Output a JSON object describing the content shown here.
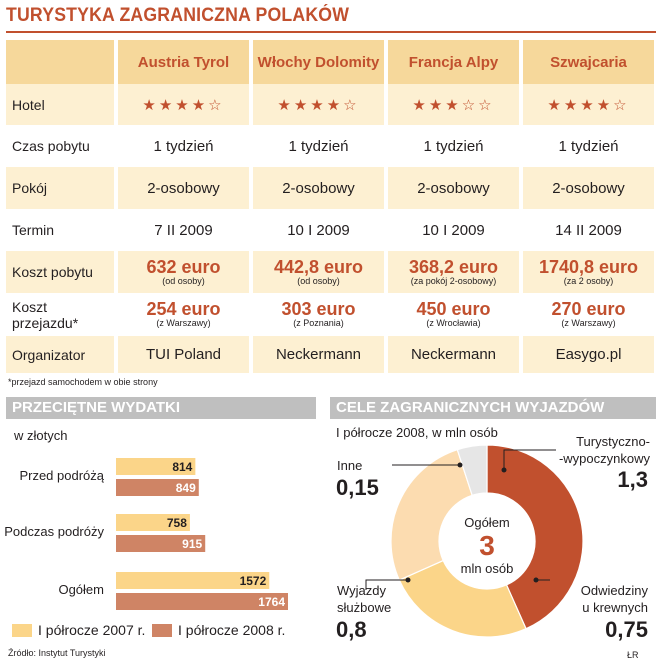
{
  "title": "TURYSTYKA ZAGRANICZNA POLAKÓW",
  "colors": {
    "accent": "#c1502e",
    "header_band": "#f6d89b",
    "row_band": "#fdf0d2",
    "bar_2007": "#fbd589",
    "bar_2008": "#cf8465",
    "donut_turyst": "#c1502e",
    "donut_odw": "#fbd589",
    "donut_wyj": "#fcdcb0",
    "donut_inne": "#e6e6e6",
    "section": "#bfbfbf"
  },
  "table": {
    "destinations": [
      "Austria Tyrol",
      "Włochy Dolomity",
      "Francja Alpy",
      "Szwajcaria"
    ],
    "rows": {
      "hotel": {
        "label": "Hotel",
        "stars": [
          "★★★★☆",
          "★★★★☆",
          "★★★☆☆",
          "★★★★☆"
        ]
      },
      "czas": {
        "label": "Czas pobytu",
        "values": [
          "1 tydzień",
          "1 tydzień",
          "1 tydzień",
          "1 tydzień"
        ]
      },
      "pokoj": {
        "label": "Pokój",
        "values": [
          "2-osobowy",
          "2-osobowy",
          "2-osobowy",
          "2-osobowy"
        ]
      },
      "termin": {
        "label": "Termin",
        "values": [
          "7 II 2009",
          "10 I 2009",
          "10 I 2009",
          "14 II 2009"
        ]
      },
      "koszt_pobytu": {
        "label": "Koszt pobytu",
        "values": [
          "632 euro",
          "442,8 euro",
          "368,2 euro",
          "1740,8 euro"
        ],
        "notes": [
          "(od osoby)",
          "(od osoby)",
          "(za pokój 2-osobowy)",
          "(za 2 osoby)"
        ]
      },
      "koszt_przejazdu": {
        "label": "Koszt przejazdu*",
        "values": [
          "254 euro",
          "303 euro",
          "450 euro",
          "270 euro"
        ],
        "notes": [
          "(z Warszawy)",
          "(z Poznania)",
          "(z Wrocławia)",
          "(z Warszawy)"
        ]
      },
      "organizator": {
        "label": "Organizator",
        "values": [
          "TUI Poland",
          "Neckermann",
          "Neckermann",
          "Easygo.pl"
        ]
      }
    }
  },
  "footnote": "*przejazd samochodem w obie strony",
  "source": "Źródło: Instytut Turystyki",
  "author": "ŁR",
  "chart_data": [
    {
      "type": "bar",
      "orientation": "horizontal",
      "title": "PRZECIĘTNE WYDATKI",
      "subtitle": "w złotych",
      "categories": [
        "Przed podróżą",
        "Podczas podróży",
        "Ogółem"
      ],
      "series": [
        {
          "name": "I półrocze 2007 r.",
          "values": [
            814,
            758,
            1572
          ],
          "labels": [
            "814",
            "758",
            "1572"
          ]
        },
        {
          "name": "I półrocze 2008 r.",
          "values": [
            849,
            915,
            1764
          ],
          "labels": [
            "849",
            "915",
            "1764"
          ]
        }
      ],
      "xlim": [
        0,
        1764
      ],
      "grid": false,
      "legend": "bottom"
    },
    {
      "type": "pie",
      "variant": "donut",
      "title": "CELE ZAGRANICZNYCH WYJAZDÓW",
      "subtitle": "I półrocze 2008, w mln osób",
      "center_label": "Ogółem",
      "center_value": "3",
      "center_unit": "mln osób",
      "slices": [
        {
          "label": "Turystyczno-\n-wypoczynkowy",
          "label_l1": "Turystyczno-",
          "label_l2": "-wypoczynkowy",
          "value": 1.3,
          "value_label": "1,3"
        },
        {
          "label": "Odwiedziny u krewnych",
          "label_l1": "Odwiedziny",
          "label_l2": "u krewnych",
          "value": 0.75,
          "value_label": "0,75"
        },
        {
          "label": "Wyjazdy służbowe",
          "label_l1": "Wyjazdy",
          "label_l2": "służbowe",
          "value": 0.8,
          "value_label": "0,8"
        },
        {
          "label": "Inne",
          "label_l1": "Inne",
          "label_l2": "",
          "value": 0.15,
          "value_label": "0,15"
        }
      ]
    }
  ]
}
